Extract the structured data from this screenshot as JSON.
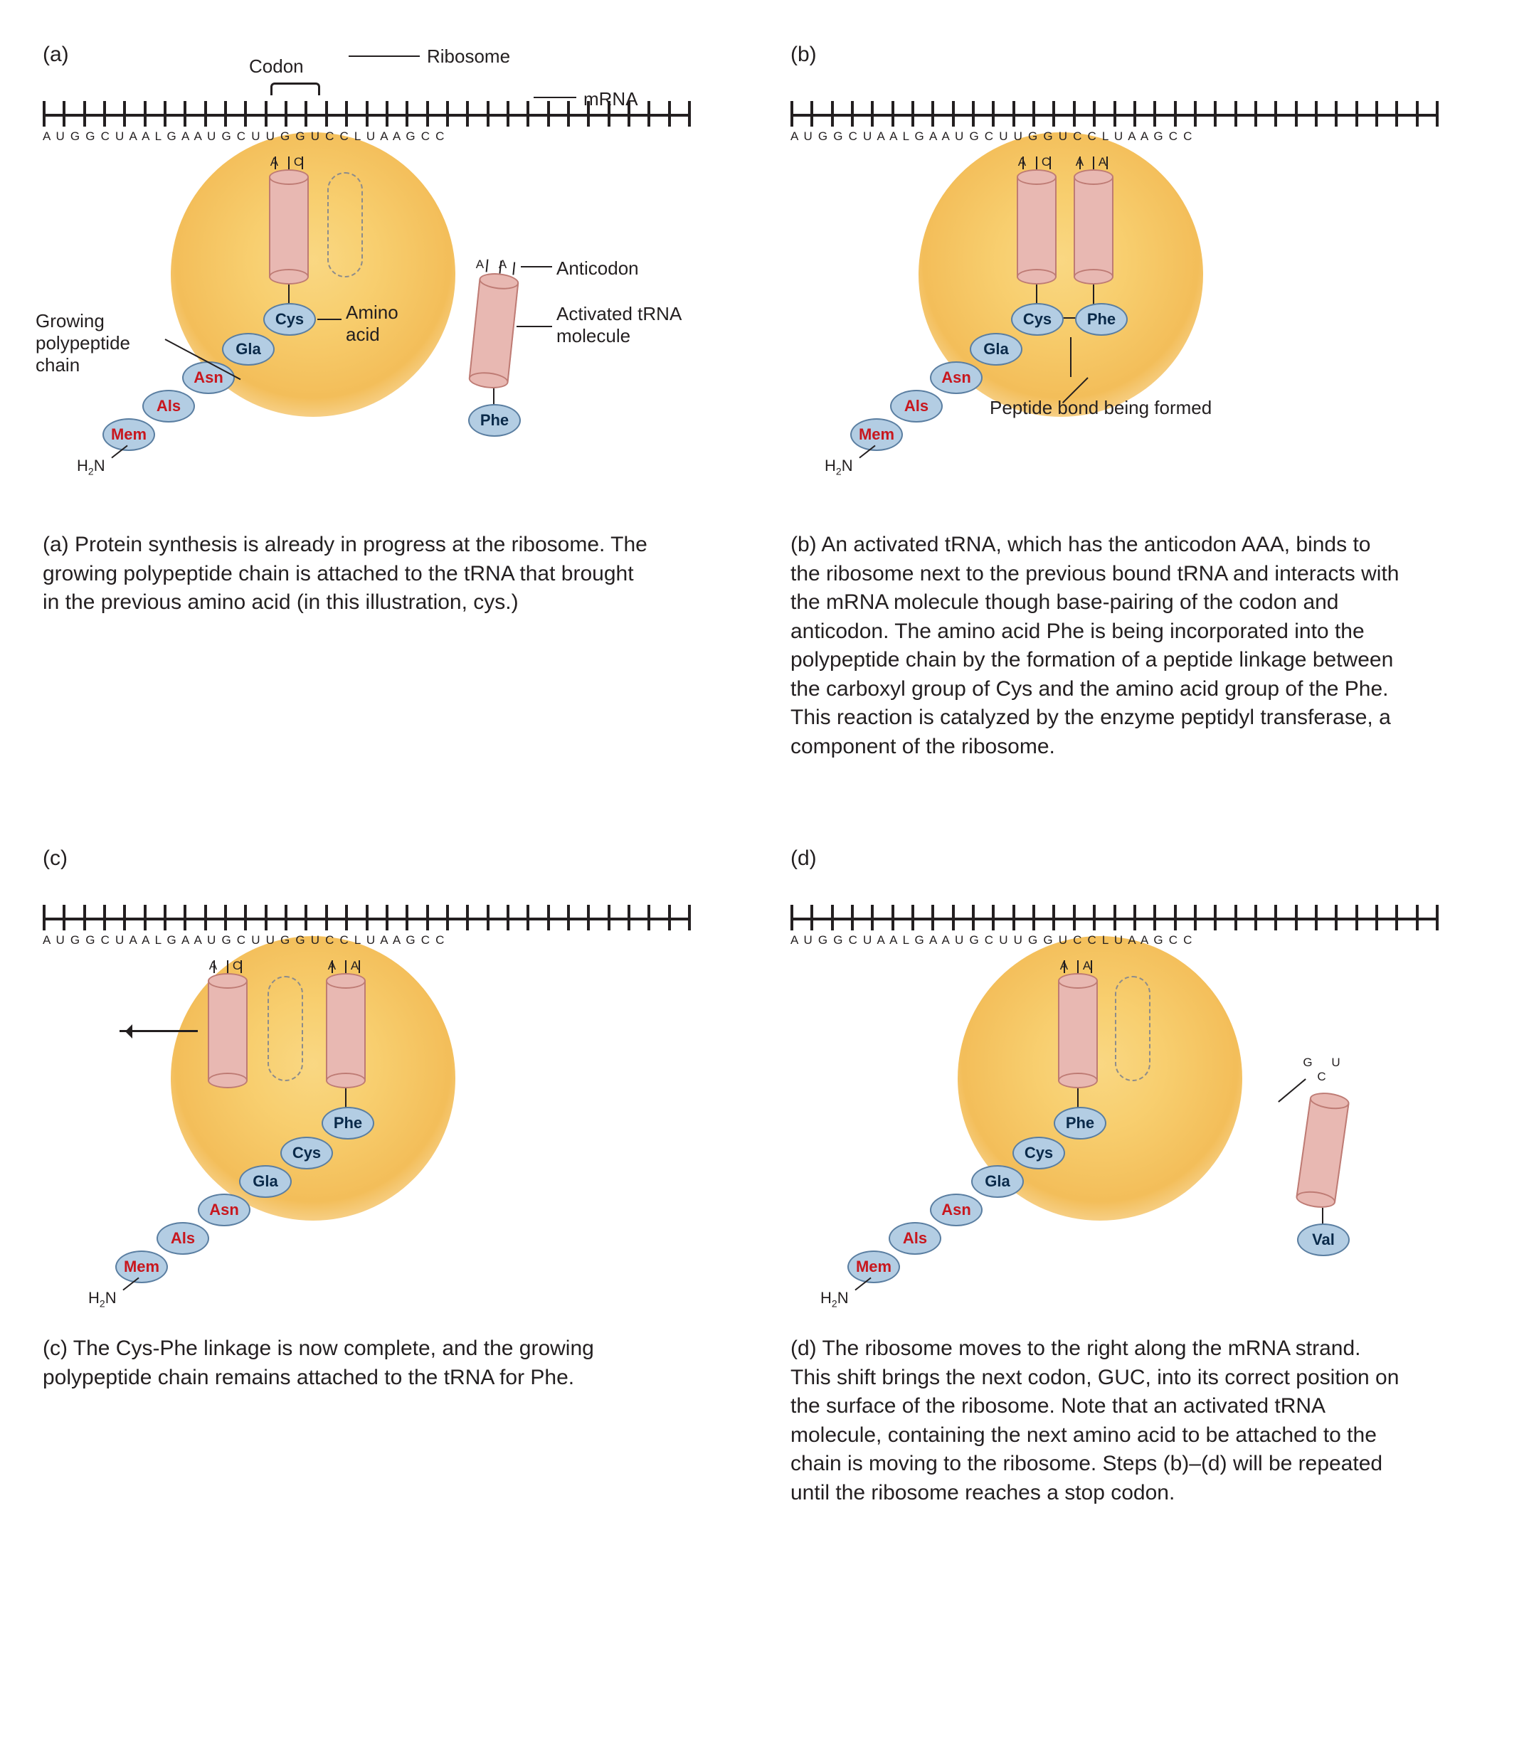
{
  "colors": {
    "text": "#231f20",
    "ribosome_inner": "#f9d478",
    "ribosome_mid": "#f2b84b",
    "trna_fill": "#e8b8b2",
    "trna_stroke": "#be7b74",
    "aa_fill": "#b3cde3",
    "aa_stroke": "#5a7ea1",
    "aa_text_red": "#c8171e",
    "aa_text_dark": "#0a2a4a",
    "ghost_stroke": "#8c8c8c",
    "background": "#ffffff"
  },
  "mrna_sequence": "A U G G C U A A L G A A U G C U U G G U C C L U A A G C C",
  "mrna_tick_count": 33,
  "amino_chain": [
    "Mem",
    "Als",
    "Asn",
    "Gla",
    "Cys"
  ],
  "h2n_label": "H₂N",
  "labels": {
    "ribosome": "Ribosome",
    "codon": "Codon",
    "mrna": "mRNA",
    "growing": "Growing polypeptide chain",
    "amino_acid": "Amino acid",
    "anticodon": "Anticodon",
    "activated_trna": "Activated tRNA molecule",
    "peptide_bond": "Peptide bond being formed"
  },
  "panels": {
    "a": {
      "key": "(a)",
      "anticodon_1": "A C G",
      "incoming_anticodon": "A A A",
      "incoming_aa": "Phe",
      "caption": "(a) Protein synthesis is already in progress at the ribosome. The growing polypeptide chain is attached to the tRNA that brought in the previous amino acid (in this illustration, cys.)"
    },
    "b": {
      "key": "(b)",
      "anticodon_1": "A C G",
      "anticodon_2": "A A A",
      "aa_2": "Phe",
      "caption": "(b) An activated tRNA, which has the anticodon AAA, binds to the ribosome next to the previous bound tRNA and interacts with the mRNA molecule though base-pairing of the codon and anticodon. The amino acid Phe is being incorporated into the polypeptide chain by the formation of a peptide linkage between the carboxyl group of Cys and the amino acid group of the Phe. This reaction is catalyzed by the enzyme peptidyl transferase, a component of the ribosome."
    },
    "c": {
      "key": "(c)",
      "anticodon_1": "A C G",
      "anticodon_2": "A A A",
      "chain": [
        "Mem",
        "Als",
        "Asn",
        "Gla",
        "Cys",
        "Phe"
      ],
      "caption": "(c) The Cys-Phe linkage is now complete, and the growing polypeptide chain remains attached to the tRNA for Phe."
    },
    "d": {
      "key": "(d)",
      "anticodon": "A A A",
      "chain": [
        "Mem",
        "Als",
        "Asn",
        "Gla",
        "Cys",
        "Phe"
      ],
      "incoming_anticodon": "G U C",
      "incoming_aa": "Val",
      "caption": "(d) The ribosome moves to the right along the mRNA strand. This shift brings the next codon, GUC, into its correct position on the surface of the ribosome. Note that an activated tRNA molecule, containing the next amino acid to be attached to the chain is moving to the ribosome. Steps (b)–(d) will be repeated until the ribosome reaches a stop codon."
    }
  }
}
